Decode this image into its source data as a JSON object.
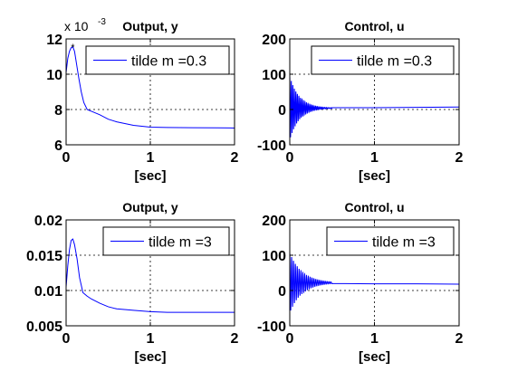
{
  "chart_data": [
    {
      "type": "line",
      "title": "Output, y",
      "xlabel": "[sec]",
      "ylabel": "",
      "exponent_label": "x 10",
      "exponent_power": "-3",
      "xlim": [
        0,
        2
      ],
      "ylim": [
        6,
        12
      ],
      "xticks": [
        0,
        1,
        2
      ],
      "xtick_labels": [
        "0",
        "1",
        "2"
      ],
      "yticks": [
        6,
        8,
        10,
        12
      ],
      "ytick_labels": [
        "6",
        "8",
        "10",
        "12"
      ],
      "grid": true,
      "legend_position": "top-right",
      "series": [
        {
          "name": "tilde m =0.3",
          "color": "#0000ff",
          "marker_at_peak": "*",
          "x": [
            0,
            0.02,
            0.04,
            0.06,
            0.08,
            0.1,
            0.12,
            0.15,
            0.18,
            0.21,
            0.25,
            0.3,
            0.4,
            0.5,
            0.6,
            0.8,
            1.0,
            1.2,
            1.5,
            1.8,
            2.0
          ],
          "y": [
            10.1,
            10.9,
            11.3,
            11.5,
            11.55,
            11.3,
            10.7,
            9.8,
            9.0,
            8.4,
            8.0,
            7.9,
            7.7,
            7.45,
            7.3,
            7.1,
            7.0,
            6.98,
            6.97,
            6.96,
            6.95
          ]
        }
      ]
    },
    {
      "type": "line",
      "title": "Control, u",
      "xlabel": "[sec]",
      "ylabel": "",
      "xlim": [
        0,
        2
      ],
      "ylim": [
        -100,
        200
      ],
      "xticks": [
        0,
        1,
        2
      ],
      "xtick_labels": [
        "0",
        "1",
        "2"
      ],
      "yticks": [
        -100,
        0,
        100,
        200
      ],
      "ytick_labels": [
        "-100",
        "0",
        "100",
        "200"
      ],
      "grid": true,
      "legend_position": "top-right",
      "series": [
        {
          "name": "tilde m =0.3",
          "color": "#0000ff",
          "oscillation": {
            "offset": 4,
            "initial_amplitude": 90,
            "decay_rate": 9,
            "period": 0.018,
            "tail": [
              [
                0.5,
                5
              ],
              [
                1.0,
                5
              ],
              [
                1.5,
                6
              ],
              [
                2.0,
                7
              ]
            ]
          }
        }
      ]
    },
    {
      "type": "line",
      "title": "Output, y",
      "xlabel": "[sec]",
      "ylabel": "",
      "xlim": [
        0,
        2
      ],
      "ylim": [
        0.005,
        0.02
      ],
      "xticks": [
        0,
        1,
        2
      ],
      "xtick_labels": [
        "0",
        "1",
        "2"
      ],
      "yticks": [
        0.005,
        0.01,
        0.015,
        0.02
      ],
      "ytick_labels": [
        "0.005",
        "0.01",
        "0.015",
        "0.02"
      ],
      "grid": true,
      "legend_position": "top-right",
      "series": [
        {
          "name": "tilde m =3",
          "color": "#0000ff",
          "x": [
            0,
            0.02,
            0.04,
            0.06,
            0.08,
            0.1,
            0.13,
            0.16,
            0.2,
            0.25,
            0.3,
            0.4,
            0.5,
            0.6,
            0.8,
            1.0,
            1.2,
            1.5,
            1.8,
            2.0
          ],
          "y": [
            0.0105,
            0.0135,
            0.0158,
            0.0171,
            0.0173,
            0.0165,
            0.0145,
            0.0118,
            0.0097,
            0.0092,
            0.0088,
            0.0082,
            0.0077,
            0.0074,
            0.0072,
            0.007,
            0.0069,
            0.0069,
            0.0069,
            0.0069
          ]
        }
      ]
    },
    {
      "type": "line",
      "title": "Control, u",
      "xlabel": "[sec]",
      "ylabel": "",
      "xlim": [
        0,
        2
      ],
      "ylim": [
        -100,
        200
      ],
      "xticks": [
        0,
        1,
        2
      ],
      "xtick_labels": [
        "0",
        "1",
        "2"
      ],
      "yticks": [
        -100,
        0,
        100,
        200
      ],
      "ytick_labels": [
        "-100",
        "0",
        "100",
        "200"
      ],
      "grid": true,
      "legend_position": "top-right",
      "series": [
        {
          "name": "tilde m =3",
          "color": "#0000ff",
          "oscillation": {
            "offset": 22,
            "initial_amplitude": 85,
            "decay_rate": 7,
            "period": 0.022,
            "tail": [
              [
                0.5,
                20
              ],
              [
                1.0,
                19
              ],
              [
                1.5,
                19
              ],
              [
                2.0,
                18
              ]
            ]
          }
        }
      ]
    }
  ]
}
